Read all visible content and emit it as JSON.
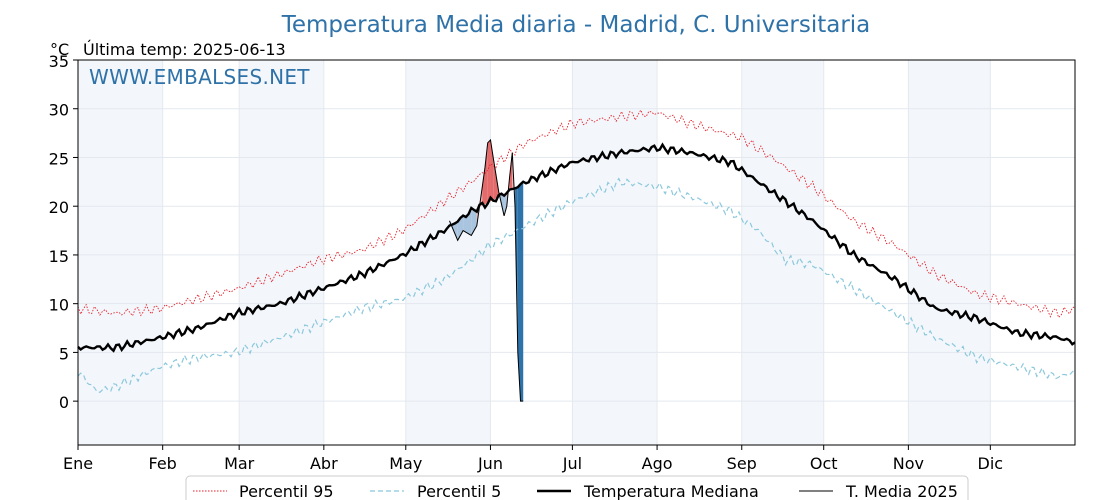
{
  "chart_data": {
    "type": "line",
    "title": "Temperatura Media diaria - Madrid, C. Universitaria",
    "unit": "°C",
    "last_temp_label": "Última temp: 2025-06-13",
    "watermark": "WWW.EMBALSES.NET",
    "ylim": [
      -4.5,
      35
    ],
    "y_ticks": [
      0,
      5,
      10,
      15,
      20,
      25,
      30,
      35
    ],
    "x_tick_labels": [
      "Ene",
      "Feb",
      "Mar",
      "Abr",
      "May",
      "Jun",
      "Jul",
      "Ago",
      "Sep",
      "Oct",
      "Nov",
      "Dic"
    ],
    "x_tick_days": [
      1,
      32,
      60,
      91,
      121,
      152,
      182,
      213,
      244,
      274,
      305,
      335
    ],
    "grid": true,
    "alternating_month_shading": true,
    "legend_position": "bottom-center",
    "series": [
      {
        "name": "Percentil 95",
        "color": "#e8202a",
        "style": "dotted",
        "days": [
          1,
          15,
          31,
          45,
          59,
          75,
          90,
          105,
          120,
          135,
          145,
          152,
          165,
          182,
          200,
          213,
          225,
          244,
          255,
          270,
          285,
          300,
          315,
          330,
          345,
          360,
          366
        ],
        "values": [
          9.5,
          9.0,
          9.5,
          10.5,
          11.5,
          13.0,
          14.5,
          15.5,
          17.5,
          20.5,
          22.5,
          24.0,
          26.5,
          28.5,
          29.2,
          29.6,
          28.5,
          27.0,
          25.0,
          22.0,
          18.5,
          16.0,
          13.0,
          11.0,
          10.0,
          9.0,
          9.5
        ]
      },
      {
        "name": "Percentil 5",
        "color": "#8cc8dc",
        "style": "dashed",
        "days": [
          1,
          8,
          15,
          31,
          45,
          59,
          75,
          90,
          105,
          120,
          135,
          145,
          152,
          165,
          182,
          200,
          213,
          225,
          240,
          250,
          260,
          270,
          285,
          300,
          315,
          330,
          345,
          360,
          366
        ],
        "values": [
          3.0,
          1.0,
          1.5,
          3.5,
          4.5,
          5.0,
          6.5,
          8.0,
          9.5,
          10.5,
          12.5,
          14.5,
          16.0,
          18.0,
          20.5,
          22.5,
          22.0,
          21.0,
          19.5,
          17.5,
          14.5,
          14.0,
          11.5,
          9.0,
          6.5,
          4.5,
          3.5,
          2.5,
          3.0
        ]
      },
      {
        "name": "Temperatura Mediana",
        "color": "#000000",
        "style": "solid-thick",
        "days": [
          1,
          15,
          31,
          45,
          59,
          75,
          90,
          105,
          120,
          135,
          145,
          152,
          165,
          182,
          200,
          213,
          225,
          240,
          255,
          270,
          285,
          300,
          315,
          330,
          345,
          360,
          366
        ],
        "values": [
          5.5,
          5.5,
          6.5,
          7.5,
          9.0,
          10.0,
          11.5,
          13.0,
          15.0,
          17.5,
          19.5,
          20.5,
          22.5,
          24.5,
          25.5,
          26.0,
          25.5,
          24.5,
          21.5,
          18.5,
          15.0,
          12.5,
          9.5,
          8.5,
          7.0,
          6.5,
          6.0
        ]
      },
      {
        "name": "T. Media 2025",
        "color": "#000000",
        "style": "solid-thin",
        "days": [
          137,
          140,
          142,
          145,
          147,
          149,
          150,
          151,
          152,
          153,
          155,
          157,
          158,
          159,
          160,
          161,
          162,
          163,
          164
        ],
        "values": [
          18.5,
          16.5,
          17.5,
          17.0,
          18.0,
          22.0,
          24.0,
          26.5,
          26.8,
          25.0,
          21.5,
          19.0,
          20.0,
          23.0,
          25.5,
          20.0,
          5.0,
          0.0,
          0.0
        ]
      }
    ]
  },
  "legend": {
    "items": [
      {
        "label": "Percentil 95"
      },
      {
        "label": "Percentil 5"
      },
      {
        "label": "Temperatura Mediana"
      },
      {
        "label": "T. Media 2025"
      }
    ]
  },
  "colors": {
    "above_fill": "#f2b6b6",
    "above_fill_strong": "#e46b6b",
    "below_fill": "#2e74aa",
    "below_fill_light": "#a9c4de",
    "shade": "#f3f7fb",
    "grid": "#e4e9ef"
  }
}
